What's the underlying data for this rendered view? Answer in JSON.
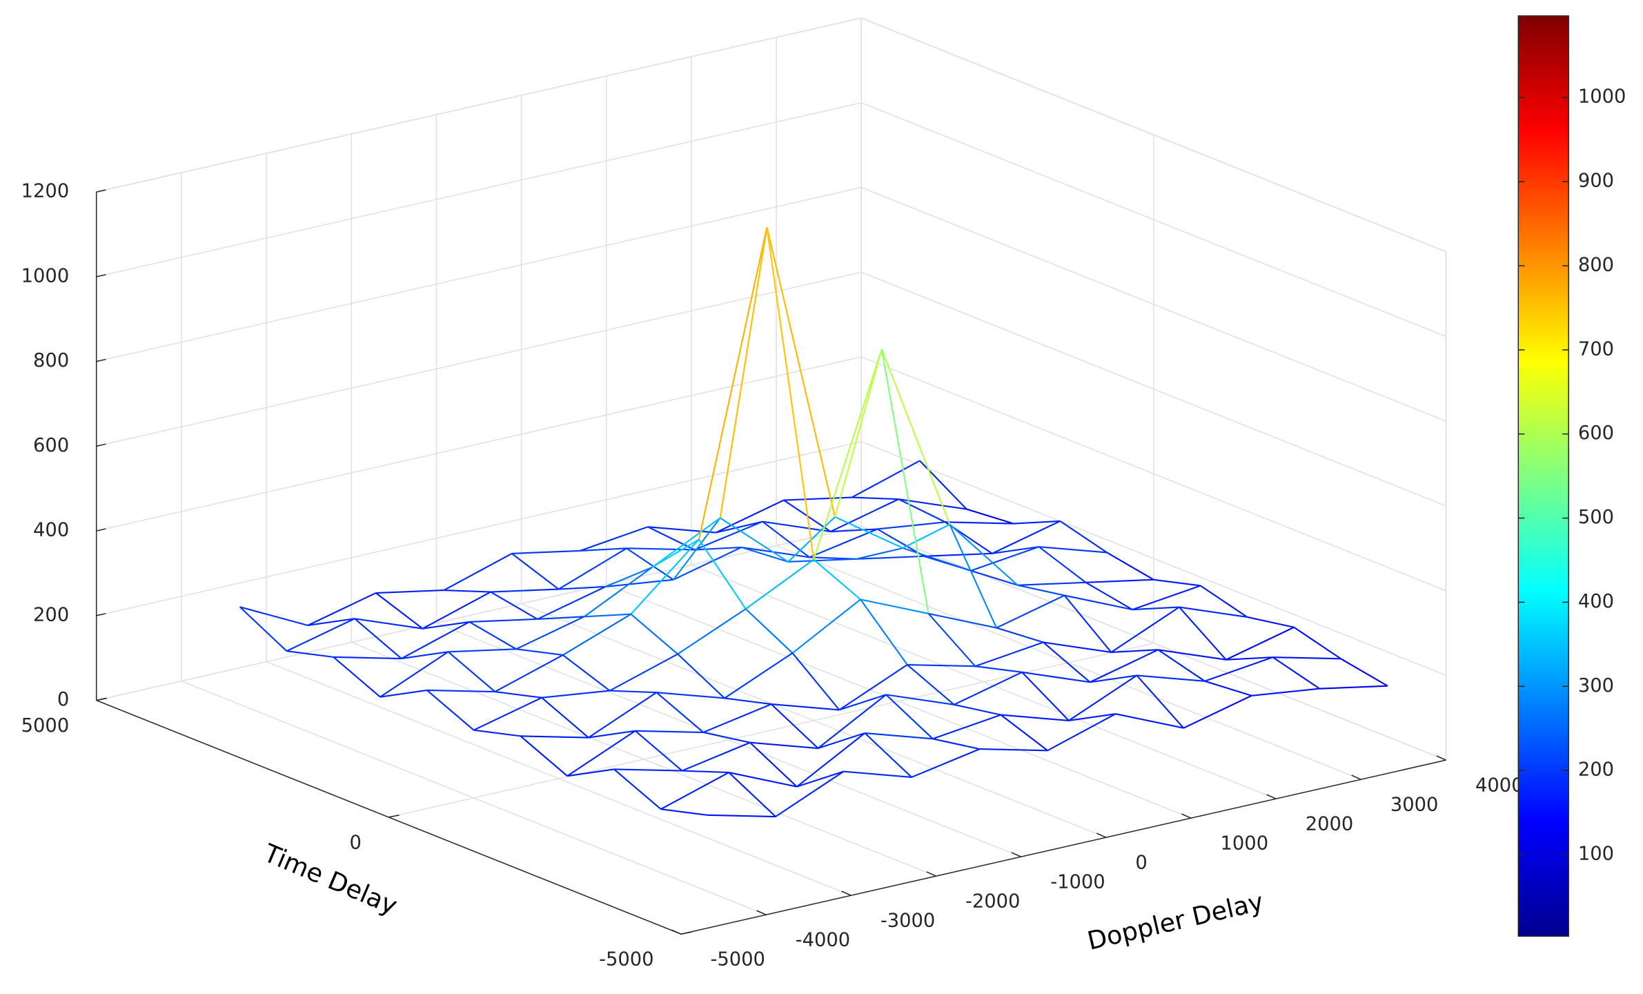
{
  "chart_data": {
    "type": "mesh3d",
    "xlabel": "Doppler Delay",
    "ylabel": "Time Delay",
    "xlim": [
      -5000,
      4000
    ],
    "ylim": [
      -5000,
      5000
    ],
    "zlim": [
      0,
      1200
    ],
    "xticks": [
      -5000,
      -4000,
      -3000,
      -2000,
      -1000,
      0,
      1000,
      2000,
      3000,
      4000
    ],
    "yticks": [
      5000,
      0,
      -5000
    ],
    "zticks": [
      0,
      200,
      400,
      600,
      800,
      1000,
      1200
    ],
    "grid": true,
    "colormap": "jet",
    "clim": [
      3,
      1097
    ],
    "cticks": [
      100,
      200,
      300,
      400,
      500,
      600,
      700,
      800,
      900,
      1000
    ],
    "x": [
      -4000,
      -3200,
      -2400,
      -1600,
      -800,
      0,
      800,
      1600,
      2400,
      3200,
      4000
    ],
    "y": [
      -4000,
      -3200,
      -2400,
      -1600,
      -800,
      0,
      800,
      1600,
      2400,
      3200,
      4000
    ],
    "z": [
      [
        180,
        140,
        210,
        160,
        190,
        150,
        200,
        130,
        170,
        150,
        120
      ],
      [
        150,
        200,
        130,
        220,
        170,
        190,
        140,
        210,
        160,
        180,
        140
      ],
      [
        200,
        160,
        190,
        140,
        230,
        170,
        210,
        150,
        190,
        130,
        170
      ],
      [
        140,
        210,
        170,
        200,
        150,
        220,
        180,
        200,
        140,
        210,
        150
      ],
      [
        190,
        150,
        220,
        170,
        240,
        330,
        260,
        190,
        230,
        160,
        180
      ],
      [
        160,
        200,
        180,
        230,
        300,
        380,
        840,
        390,
        210,
        180,
        150
      ],
      [
        210,
        170,
        220,
        280,
        420,
        1120,
        400,
        290,
        200,
        220,
        170
      ],
      [
        150,
        220,
        190,
        230,
        310,
        390,
        250,
        220,
        190,
        160,
        200
      ],
      [
        200,
        160,
        210,
        180,
        220,
        200,
        240,
        180,
        210,
        190,
        150
      ],
      [
        170,
        210,
        150,
        200,
        170,
        230,
        190,
        220,
        160,
        200,
        140
      ],
      [
        230,
        150,
        190,
        160,
        210,
        180,
        200,
        150,
        190,
        160,
        210
      ]
    ]
  }
}
